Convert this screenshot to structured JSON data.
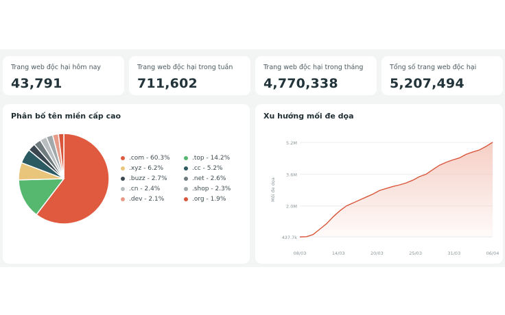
{
  "stats": [
    {
      "label": "Trang web độc hại hôm nay",
      "value": "43,791"
    },
    {
      "label": "Trang web độc hại trong tuần",
      "value": "711,602"
    },
    {
      "label": "Trang web độc hại trong tháng",
      "value": "4,770,338"
    },
    {
      "label": "Tổng số trang web độc hại",
      "value": "5,207,494"
    }
  ],
  "pie_panel": {
    "title": "Phân bố tên miền cấp cao"
  },
  "trend_panel": {
    "title": "Xu hướng mối đe dọa"
  },
  "chart_data": [
    {
      "type": "pie",
      "title": "Phân bố tên miền cấp cao",
      "slices": [
        {
          "label": ".com - 60.3%",
          "name": ".com",
          "value": 60.3,
          "color": "#e05a3f"
        },
        {
          "label": ".top - 14.2%",
          "name": ".top",
          "value": 14.2,
          "color": "#55b86e"
        },
        {
          "label": ".xyz - 6.2%",
          "name": ".xyz",
          "value": 6.2,
          "color": "#e8c57b"
        },
        {
          "label": ".cc - 5.2%",
          "name": ".cc",
          "value": 5.2,
          "color": "#2c5a62"
        },
        {
          "label": ".buzz - 2.7%",
          "name": ".buzz",
          "value": 2.7,
          "color": "#3a4650"
        },
        {
          "label": ".net - 2.6%",
          "name": ".net",
          "value": 2.6,
          "color": "#6f7a7e"
        },
        {
          "label": ".cn - 2.4%",
          "name": ".cn",
          "value": 2.4,
          "color": "#b8bec0"
        },
        {
          "label": ".shop - 2.3%",
          "name": ".shop",
          "value": 2.3,
          "color": "#a2a9ab"
        },
        {
          "label": ".dev - 2.1%",
          "name": ".dev",
          "value": 2.1,
          "color": "#e89a88"
        },
        {
          "label": ".org - 1.9%",
          "name": ".org",
          "value": 1.9,
          "color": "#d9553a"
        }
      ]
    },
    {
      "type": "area",
      "title": "Xu hướng mối đe dọa",
      "ylabel": "Mối đe dọa",
      "ylim": [
        437700,
        5200000
      ],
      "ytick_values": [
        437700,
        2000000,
        3600000,
        5200000
      ],
      "ytick_labels": [
        "437.7k",
        "2.0M",
        "3.6M",
        "5.2M"
      ],
      "xticks": [
        "08/03",
        "14/03",
        "20/03",
        "25/03",
        "31/03",
        "06/04"
      ],
      "x": [
        0,
        1,
        2,
        3,
        4,
        5,
        6,
        7,
        8,
        9,
        10,
        11,
        12,
        13,
        14,
        15,
        16,
        17,
        18,
        19,
        20,
        21,
        22,
        23,
        24,
        25,
        26,
        27,
        28,
        29
      ],
      "values": [
        437700,
        450000,
        560000,
        830000,
        1100000,
        1450000,
        1750000,
        2000000,
        2150000,
        2300000,
        2450000,
        2600000,
        2780000,
        2880000,
        2980000,
        3060000,
        3160000,
        3300000,
        3480000,
        3600000,
        3830000,
        4050000,
        4200000,
        4320000,
        4420000,
        4600000,
        4720000,
        4820000,
        5000000,
        5207494
      ],
      "line_color": "#d9553a",
      "fill_color": "#f4c6bb"
    }
  ]
}
